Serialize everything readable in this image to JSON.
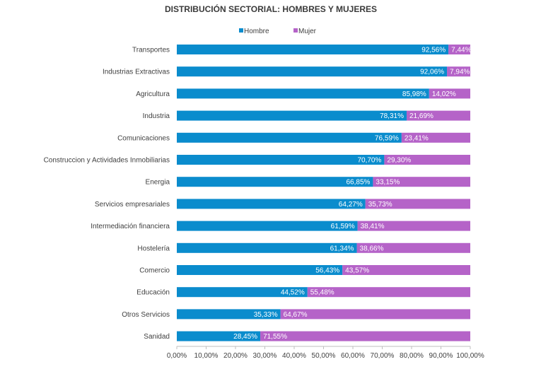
{
  "colors": {
    "hombre": "#0a8ccd",
    "mujer": "#b563c8",
    "hombre_light": "#a9d8ef",
    "mujer_light": "#ead3f0"
  },
  "chart_data": {
    "type": "bar",
    "orientation": "horizontal",
    "stacked": true,
    "title": "DISTRIBUCIÓN SECTORIAL: HOMBRES Y MUJERES",
    "legend_position": "top",
    "categories": [
      "Transportes",
      "Industrias Extractivas",
      "Agricultura",
      "Industria",
      "Comunicaciones",
      "Construccion y Actividades Inmobiliarias",
      "Energia",
      "Servicios empresariales",
      "Intermediación financiera",
      "Hostelería",
      "Comercio",
      "Educación",
      "Otros Servicios",
      "Sanidad"
    ],
    "series": [
      {
        "name": "Hombre",
        "values": [
          92.56,
          92.06,
          85.98,
          78.31,
          76.59,
          70.7,
          66.85,
          64.27,
          61.59,
          61.34,
          56.43,
          44.52,
          35.33,
          28.45
        ],
        "labels": [
          "92,56%",
          "92,06%",
          "85,98%",
          "78,31%",
          "76,59%",
          "70,70%",
          "66,85%",
          "64,27%",
          "61,59%",
          "61,34%",
          "56,43%",
          "44,52%",
          "35,33%",
          "28,45%"
        ]
      },
      {
        "name": "Mujer",
        "values": [
          7.44,
          7.94,
          14.02,
          21.69,
          23.41,
          29.3,
          33.15,
          35.73,
          38.41,
          38.66,
          43.57,
          55.48,
          64.67,
          71.55
        ],
        "labels": [
          "7,44%",
          "7,94%",
          "14,02%",
          "21,69%",
          "23,41%",
          "29,30%",
          "33,15%",
          "35,73%",
          "38,41%",
          "38,66%",
          "43,57%",
          "55,48%",
          "64,67%",
          "71,55%"
        ]
      }
    ],
    "xlim": [
      0,
      100
    ],
    "x_ticks": [
      "0,00%",
      "10,00%",
      "20,00%",
      "30,00%",
      "40,00%",
      "50,00%",
      "60,00%",
      "70,00%",
      "80,00%",
      "90,00%",
      "100,00%"
    ],
    "grid": false
  }
}
